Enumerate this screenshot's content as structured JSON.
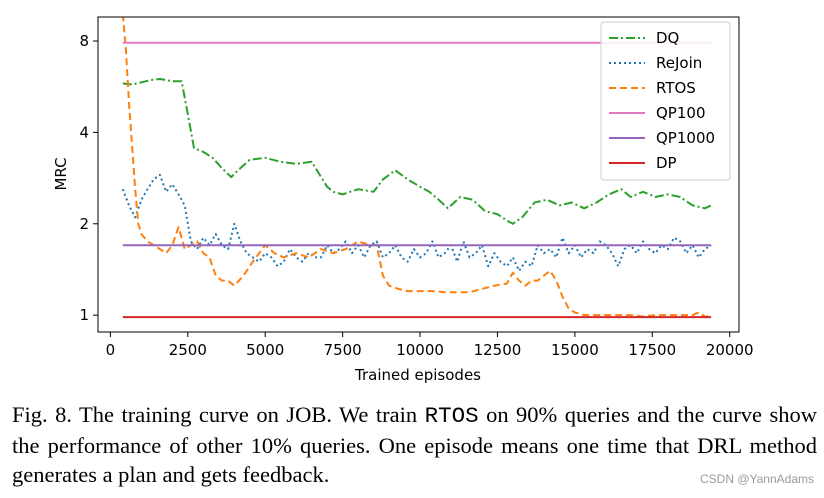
{
  "chart_data": {
    "type": "line",
    "xlabel": "Trained episodes",
    "ylabel": "MRC",
    "y_scale": "log",
    "xlim": [
      -400,
      20300
    ],
    "ylim": [
      0.88,
      9.6
    ],
    "x_ticks": [
      0,
      2500,
      5000,
      7500,
      10000,
      12500,
      15000,
      17500,
      20000
    ],
    "x_tick_labels": [
      "0",
      "2500",
      "5000",
      "7500",
      "10000",
      "12500",
      "15000",
      "17500",
      "20000"
    ],
    "y_ticks": [
      1,
      2,
      4,
      8
    ],
    "y_tick_labels": [
      "1",
      "2",
      "4",
      "8"
    ],
    "legend_position": "top-right",
    "series": [
      {
        "name": "DQ",
        "color": "#2ca02c",
        "style": "dashdot",
        "x": [
          400,
          700,
          1000,
          1300,
          1600,
          2000,
          2300,
          2500,
          2700,
          3000,
          3300,
          3600,
          3900,
          4200,
          4500,
          5000,
          5500,
          6000,
          6500,
          7000,
          7200,
          7500,
          8000,
          8500,
          8800,
          9200,
          9600,
          10000,
          10300,
          10600,
          10900,
          11300,
          11700,
          12100,
          12500,
          12800,
          13000,
          13300,
          13700,
          14100,
          14500,
          14900,
          15300,
          15700,
          16100,
          16500,
          16800,
          17200,
          17600,
          18000,
          18400,
          18800,
          19200,
          19400
        ],
        "y": [
          5.8,
          5.75,
          5.85,
          5.95,
          6.0,
          5.9,
          5.9,
          4.6,
          3.55,
          3.45,
          3.3,
          3.05,
          2.85,
          3.05,
          3.25,
          3.3,
          3.2,
          3.15,
          3.2,
          2.65,
          2.55,
          2.5,
          2.6,
          2.55,
          2.8,
          3.0,
          2.8,
          2.65,
          2.55,
          2.4,
          2.25,
          2.45,
          2.4,
          2.2,
          2.15,
          2.05,
          2.0,
          2.1,
          2.35,
          2.4,
          2.3,
          2.35,
          2.25,
          2.35,
          2.5,
          2.6,
          2.45,
          2.55,
          2.45,
          2.5,
          2.45,
          2.3,
          2.25,
          2.3
        ]
      },
      {
        "name": "ReJoin",
        "color": "#1f77b4",
        "style": "dotted",
        "x": [
          400,
          600,
          800,
          1000,
          1200,
          1400,
          1600,
          1800,
          2000,
          2200,
          2400,
          2600,
          2800,
          3000,
          3200,
          3400,
          3600,
          3800,
          4000,
          4200,
          4400,
          4600,
          4800,
          5000,
          5200,
          5400,
          5600,
          5800,
          6000,
          6200,
          6400,
          6600,
          6800,
          7000,
          7200,
          7400,
          7600,
          7800,
          8000,
          8200,
          8400,
          8600,
          8800,
          9000,
          9200,
          9400,
          9600,
          9800,
          10000,
          10200,
          10400,
          10600,
          10800,
          11000,
          11200,
          11400,
          11600,
          11800,
          12000,
          12200,
          12400,
          12600,
          12800,
          13000,
          13200,
          13400,
          13600,
          13800,
          14000,
          14200,
          14400,
          14600,
          14800,
          15000,
          15200,
          15400,
          15600,
          15800,
          16000,
          16200,
          16400,
          16600,
          16800,
          17000,
          17200,
          17400,
          17600,
          17800,
          18000,
          18200,
          18400,
          18600,
          18800,
          19000,
          19200,
          19400
        ],
        "y": [
          2.6,
          2.3,
          2.1,
          2.4,
          2.6,
          2.8,
          2.9,
          2.55,
          2.7,
          2.5,
          2.3,
          1.75,
          1.65,
          1.8,
          1.7,
          1.85,
          1.7,
          1.65,
          2.0,
          1.75,
          1.6,
          1.55,
          1.5,
          1.6,
          1.55,
          1.45,
          1.5,
          1.65,
          1.55,
          1.5,
          1.6,
          1.55,
          1.55,
          1.7,
          1.6,
          1.65,
          1.75,
          1.6,
          1.7,
          1.55,
          1.7,
          1.75,
          1.55,
          1.6,
          1.7,
          1.55,
          1.5,
          1.65,
          1.55,
          1.6,
          1.75,
          1.55,
          1.6,
          1.7,
          1.5,
          1.75,
          1.55,
          1.6,
          1.7,
          1.45,
          1.6,
          1.5,
          1.45,
          1.55,
          1.4,
          1.5,
          1.45,
          1.7,
          1.6,
          1.65,
          1.55,
          1.8,
          1.6,
          1.7,
          1.55,
          1.65,
          1.6,
          1.75,
          1.7,
          1.6,
          1.45,
          1.65,
          1.7,
          1.6,
          1.75,
          1.65,
          1.6,
          1.7,
          1.65,
          1.8,
          1.75,
          1.6,
          1.7,
          1.55,
          1.65,
          1.7
        ]
      },
      {
        "name": "RTOS",
        "color": "#ff7f0e",
        "style": "dashed",
        "x": [
          400,
          500,
          600,
          700,
          800,
          900,
          1000,
          1200,
          1400,
          1600,
          1800,
          2000,
          2200,
          2300,
          2400,
          2600,
          2800,
          3000,
          3200,
          3400,
          3600,
          3800,
          4000,
          4300,
          4600,
          5000,
          5300,
          5600,
          6000,
          6400,
          6800,
          7200,
          7600,
          8000,
          8400,
          8600,
          8800,
          9000,
          9300,
          9600,
          10000,
          10400,
          10800,
          11200,
          11600,
          12000,
          12400,
          12800,
          13000,
          13200,
          13400,
          13600,
          13800,
          14000,
          14200,
          14400,
          14600,
          14800,
          15000,
          15300,
          15600,
          16000,
          16400,
          16800,
          17200,
          17600,
          18000,
          18400,
          18800,
          19000,
          19200,
          19400
        ],
        "y": [
          9.8,
          7.5,
          5.0,
          3.6,
          2.6,
          2.0,
          1.85,
          1.75,
          1.7,
          1.65,
          1.6,
          1.7,
          1.95,
          1.8,
          1.65,
          1.7,
          1.75,
          1.6,
          1.55,
          1.35,
          1.3,
          1.3,
          1.25,
          1.35,
          1.5,
          1.7,
          1.6,
          1.55,
          1.6,
          1.55,
          1.65,
          1.6,
          1.65,
          1.75,
          1.7,
          1.7,
          1.35,
          1.25,
          1.22,
          1.2,
          1.2,
          1.2,
          1.19,
          1.19,
          1.19,
          1.22,
          1.25,
          1.27,
          1.38,
          1.3,
          1.25,
          1.3,
          1.3,
          1.35,
          1.4,
          1.3,
          1.15,
          1.05,
          1.02,
          1.0,
          1.0,
          1.0,
          1.0,
          1.0,
          0.99,
          1.0,
          1.0,
          1.0,
          1.0,
          1.02,
          0.99,
          0.99
        ]
      },
      {
        "name": "QP100",
        "color": "#e377c2",
        "style": "solid",
        "x": [
          400,
          19400
        ],
        "y": [
          7.9,
          7.9
        ]
      },
      {
        "name": "QP1000",
        "color": "#9467bd",
        "style": "solid",
        "x": [
          400,
          19400
        ],
        "y": [
          1.7,
          1.7
        ]
      },
      {
        "name": "DP",
        "color": "#d62728",
        "style": "solid",
        "x": [
          400,
          19400
        ],
        "y": [
          0.985,
          0.985
        ]
      }
    ]
  },
  "caption": {
    "prefix": "Fig. 8.  The training curve on JOB. We train ",
    "code": "RTOS",
    "suffix": " on 90% queries and the curve show the performance of other 10% queries. One episode means one time that DRL method generates a plan and gets feedback."
  },
  "watermark": "CSDN @YannAdams"
}
